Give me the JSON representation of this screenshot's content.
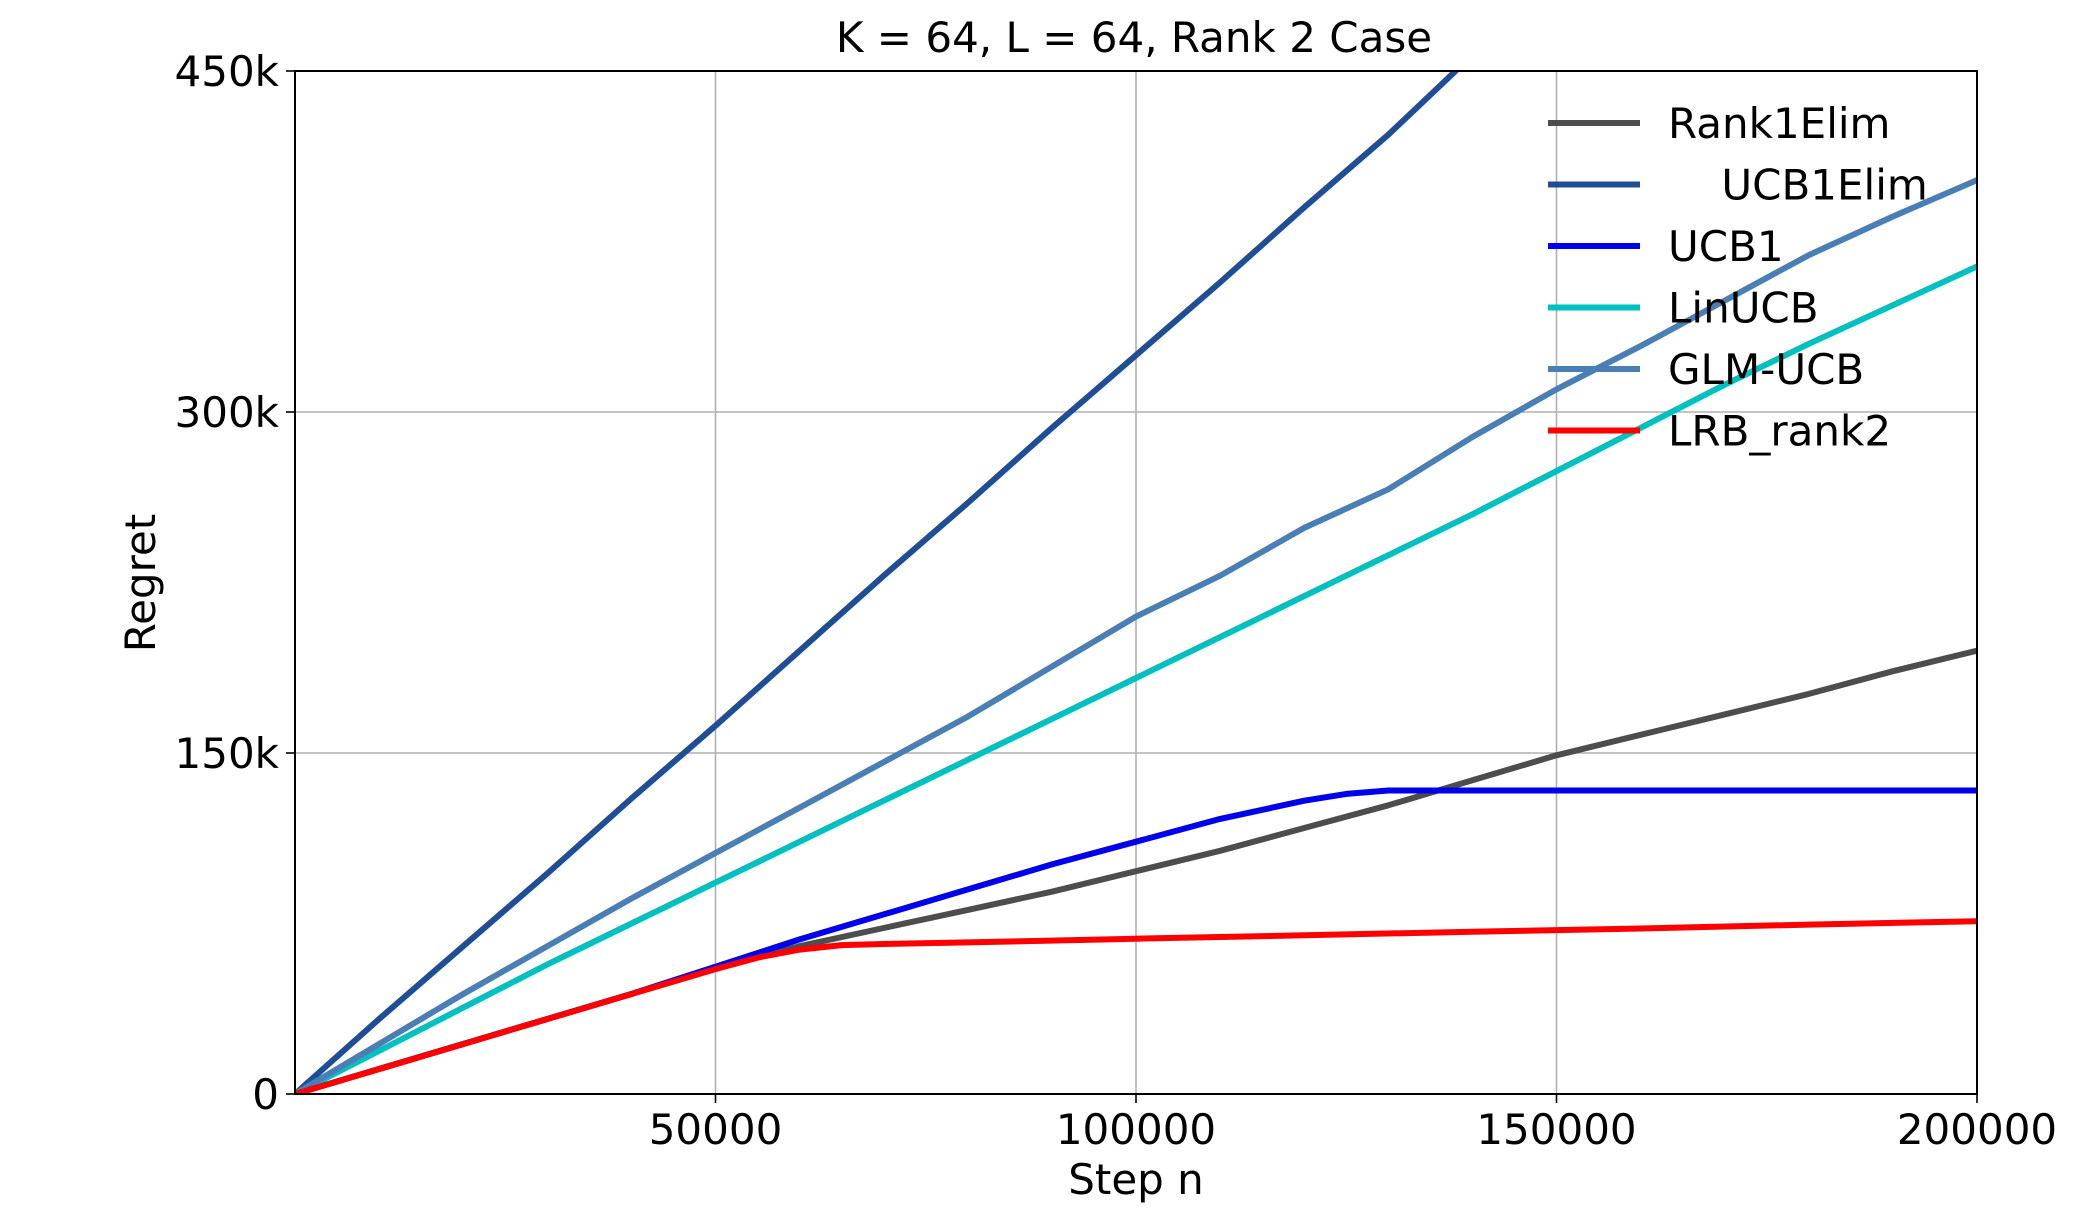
{
  "chart_data": {
    "type": "line",
    "title": "K = 64, L = 64, Rank 2 Case",
    "xlabel": "Step n",
    "ylabel": "Regret",
    "xlim": [
      0,
      200000
    ],
    "ylim": [
      0,
      450000
    ],
    "xticks": [
      50000,
      100000,
      150000,
      200000
    ],
    "xtick_labels": [
      "50000",
      "100000",
      "150000",
      "200000"
    ],
    "yticks": [
      0,
      150000,
      300000,
      450000
    ],
    "ytick_labels": [
      "0",
      "150k",
      "300k",
      "450k"
    ],
    "grid": true,
    "legend_position": "top-right",
    "series": [
      {
        "name": "Rank1Elim",
        "color": "#4d4d4d",
        "x": [
          0,
          10000,
          20000,
          30000,
          40000,
          50000,
          60000,
          70000,
          80000,
          90000,
          100000,
          110000,
          120000,
          130000,
          140000,
          150000,
          160000,
          170000,
          180000,
          190000,
          200000
        ],
        "y": [
          0,
          11000,
          22000,
          33000,
          44000,
          55000,
          65000,
          73000,
          81000,
          89000,
          98000,
          107000,
          117000,
          127000,
          138000,
          149000,
          158000,
          167000,
          176000,
          186000,
          195000
        ]
      },
      {
        "name": "UCB1Elim",
        "display_name": "    UCB1Elim",
        "color": "#1f4e96",
        "x": [
          0,
          10000,
          20000,
          30000,
          40000,
          50000,
          60000,
          70000,
          80000,
          90000,
          100000,
          110000,
          120000,
          130000,
          138000
        ],
        "y": [
          0,
          33000,
          65000,
          97000,
          130000,
          162000,
          195000,
          228000,
          260000,
          293000,
          325000,
          357000,
          390000,
          422000,
          450000
        ]
      },
      {
        "name": "UCB1",
        "color": "#0000ee",
        "x": [
          0,
          10000,
          20000,
          30000,
          40000,
          50000,
          60000,
          70000,
          80000,
          90000,
          100000,
          110000,
          120000,
          125000,
          130000,
          140000,
          150000,
          160000,
          170000,
          180000,
          190000,
          200000
        ],
        "y": [
          0,
          11000,
          22000,
          33000,
          44000,
          56000,
          68000,
          79000,
          90000,
          101000,
          111000,
          121000,
          129000,
          132000,
          133500,
          133500,
          133500,
          133500,
          133500,
          133500,
          133500,
          133500
        ]
      },
      {
        "name": "LinUCB",
        "color": "#00c0c0",
        "x": [
          0,
          10000,
          20000,
          30000,
          40000,
          50000,
          60000,
          70000,
          80000,
          90000,
          100000,
          110000,
          120000,
          130000,
          140000,
          150000,
          160000,
          170000,
          180000,
          190000,
          200000
        ],
        "y": [
          0,
          19000,
          38000,
          57000,
          75000,
          93000,
          111000,
          129000,
          147000,
          165000,
          183000,
          201000,
          219000,
          237000,
          255000,
          274000,
          293000,
          312000,
          330000,
          347000,
          364000
        ]
      },
      {
        "name": "GLM-UCB",
        "color": "#4a7fb5",
        "x": [
          0,
          10000,
          20000,
          30000,
          40000,
          50000,
          60000,
          70000,
          80000,
          90000,
          100000,
          110000,
          120000,
          130000,
          140000,
          150000,
          160000,
          170000,
          180000,
          190000,
          200000
        ],
        "y": [
          0,
          22000,
          44000,
          65000,
          86000,
          106000,
          126000,
          146000,
          166000,
          188000,
          210000,
          228000,
          249000,
          266000,
          289000,
          310000,
          329000,
          349000,
          369000,
          386000,
          402000
        ]
      },
      {
        "name": "LRB_rank2",
        "color": "#ff0000",
        "x": [
          0,
          10000,
          20000,
          30000,
          40000,
          50000,
          55000,
          60000,
          65000,
          70000,
          80000,
          100000,
          120000,
          140000,
          160000,
          180000,
          200000
        ],
        "y": [
          0,
          11000,
          22000,
          33000,
          44000,
          55000,
          60000,
          63500,
          65500,
          66000,
          66700,
          68300,
          69800,
          71400,
          72800,
          74500,
          76000
        ]
      }
    ]
  }
}
